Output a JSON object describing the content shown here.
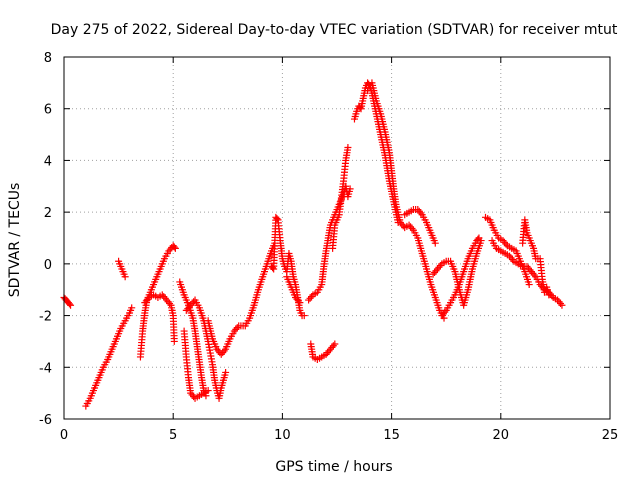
{
  "chart_data": {
    "type": "scatter",
    "title": "Day 275 of 2022, Sidereal Day-to-day VTEC variation (SDTVAR) for receiver mtut",
    "xlabel": "GPS time / hours",
    "ylabel": "SDTVAR / TECUs",
    "xlim": [
      0,
      25
    ],
    "ylim": [
      -6,
      8
    ],
    "xticks": [
      0,
      5,
      10,
      15,
      20,
      25
    ],
    "yticks": [
      -6,
      -4,
      -2,
      0,
      2,
      4,
      6,
      8
    ],
    "xtick_labels": [
      "0",
      "5",
      "10",
      "15",
      "20",
      "25"
    ],
    "ytick_labels": [
      "-6",
      "-4",
      "-2",
      "0",
      "2",
      "4",
      "6",
      "8"
    ],
    "grid": true,
    "marker": "plus",
    "color": "#ff0000",
    "series": [
      {
        "name": "s1",
        "points": [
          [
            0.0,
            -1.3
          ],
          [
            0.1,
            -1.4
          ],
          [
            0.2,
            -1.5
          ],
          [
            0.3,
            -1.6
          ]
        ]
      },
      {
        "name": "s2",
        "points": [
          [
            1.0,
            -5.5
          ],
          [
            1.2,
            -5.2
          ],
          [
            1.4,
            -4.8
          ],
          [
            1.6,
            -4.4
          ],
          [
            1.8,
            -4.0
          ],
          [
            2.0,
            -3.7
          ],
          [
            2.2,
            -3.3
          ],
          [
            2.4,
            -2.9
          ],
          [
            2.6,
            -2.5
          ],
          [
            2.8,
            -2.2
          ],
          [
            3.0,
            -1.9
          ],
          [
            3.1,
            -1.7
          ]
        ]
      },
      {
        "name": "s3",
        "points": [
          [
            2.5,
            0.1
          ],
          [
            2.6,
            -0.1
          ],
          [
            2.7,
            -0.3
          ],
          [
            2.8,
            -0.5
          ]
        ]
      },
      {
        "name": "s4",
        "points": [
          [
            3.5,
            -3.6
          ],
          [
            3.6,
            -2.6
          ],
          [
            3.7,
            -1.9
          ],
          [
            3.8,
            -1.4
          ],
          [
            4.0,
            -1.0
          ],
          [
            4.2,
            -0.6
          ],
          [
            4.4,
            -0.2
          ],
          [
            4.6,
            0.2
          ],
          [
            4.8,
            0.5
          ],
          [
            5.0,
            0.7
          ],
          [
            5.1,
            0.6
          ]
        ]
      },
      {
        "name": "s5",
        "points": [
          [
            3.7,
            -1.5
          ],
          [
            3.9,
            -1.3
          ],
          [
            4.1,
            -1.2
          ],
          [
            4.3,
            -1.3
          ],
          [
            4.5,
            -1.2
          ],
          [
            4.7,
            -1.4
          ],
          [
            4.9,
            -1.6
          ],
          [
            5.0,
            -2.0
          ],
          [
            5.05,
            -3.0
          ]
        ]
      },
      {
        "name": "s6",
        "points": [
          [
            5.3,
            -0.7
          ],
          [
            5.5,
            -1.2
          ],
          [
            5.7,
            -1.6
          ],
          [
            5.9,
            -2.1
          ],
          [
            6.0,
            -2.6
          ],
          [
            6.1,
            -3.2
          ],
          [
            6.2,
            -3.8
          ],
          [
            6.3,
            -4.4
          ],
          [
            6.4,
            -4.9
          ],
          [
            6.5,
            -5.1
          ]
        ]
      },
      {
        "name": "s7",
        "points": [
          [
            5.6,
            -1.8
          ],
          [
            5.8,
            -1.6
          ],
          [
            6.0,
            -1.4
          ],
          [
            6.2,
            -1.7
          ],
          [
            6.4,
            -2.2
          ],
          [
            6.6,
            -3.0
          ],
          [
            6.8,
            -3.9
          ],
          [
            6.9,
            -4.5
          ],
          [
            7.0,
            -4.9
          ],
          [
            7.1,
            -5.2
          ],
          [
            7.2,
            -4.8
          ],
          [
            7.4,
            -4.2
          ]
        ]
      },
      {
        "name": "s8",
        "points": [
          [
            5.5,
            -2.6
          ],
          [
            5.6,
            -3.6
          ],
          [
            5.7,
            -4.4
          ],
          [
            5.8,
            -5.0
          ],
          [
            6.0,
            -5.2
          ],
          [
            6.2,
            -5.1
          ],
          [
            6.4,
            -5.0
          ],
          [
            6.6,
            -4.9
          ]
        ]
      },
      {
        "name": "s9",
        "points": [
          [
            6.6,
            -2.2
          ],
          [
            6.8,
            -2.9
          ],
          [
            7.0,
            -3.3
          ],
          [
            7.2,
            -3.5
          ],
          [
            7.4,
            -3.3
          ],
          [
            7.6,
            -2.9
          ],
          [
            7.8,
            -2.6
          ],
          [
            8.0,
            -2.4
          ],
          [
            8.3,
            -2.4
          ],
          [
            8.5,
            -2.1
          ],
          [
            8.7,
            -1.6
          ],
          [
            8.9,
            -1.0
          ],
          [
            9.1,
            -0.5
          ],
          [
            9.3,
            0.0
          ],
          [
            9.5,
            0.5
          ],
          [
            9.6,
            0.7
          ]
        ]
      },
      {
        "name": "s10",
        "points": [
          [
            9.5,
            -0.1
          ],
          [
            9.6,
            -0.2
          ],
          [
            9.7,
            1.8
          ],
          [
            9.8,
            1.7
          ],
          [
            9.9,
            0.9
          ],
          [
            10.0,
            0.2
          ],
          [
            10.1,
            -0.1
          ],
          [
            10.2,
            -0.3
          ],
          [
            10.3,
            0.4
          ],
          [
            10.4,
            0.1
          ],
          [
            10.5,
            -0.5
          ],
          [
            10.6,
            -0.8
          ],
          [
            10.7,
            -1.3
          ],
          [
            10.8,
            -1.8
          ],
          [
            10.9,
            -2.0
          ],
          [
            11.0,
            -2.0
          ]
        ]
      },
      {
        "name": "s11",
        "points": [
          [
            10.2,
            -0.5
          ],
          [
            10.4,
            -0.9
          ],
          [
            10.6,
            -1.3
          ],
          [
            10.8,
            -1.5
          ]
        ]
      },
      {
        "name": "s12",
        "points": [
          [
            11.3,
            -3.1
          ],
          [
            11.4,
            -3.6
          ],
          [
            11.6,
            -3.7
          ],
          [
            11.8,
            -3.6
          ],
          [
            12.0,
            -3.5
          ],
          [
            12.2,
            -3.3
          ],
          [
            12.4,
            -3.1
          ]
        ]
      },
      {
        "name": "s13",
        "points": [
          [
            11.2,
            -1.4
          ],
          [
            11.4,
            -1.2
          ],
          [
            11.6,
            -1.1
          ],
          [
            11.8,
            -0.8
          ],
          [
            11.9,
            -0.1
          ],
          [
            12.0,
            0.5
          ],
          [
            12.1,
            1.0
          ],
          [
            12.2,
            1.5
          ],
          [
            12.4,
            1.9
          ],
          [
            12.6,
            2.3
          ],
          [
            12.8,
            2.7
          ],
          [
            12.9,
            3.0
          ],
          [
            13.0,
            2.6
          ],
          [
            13.1,
            2.9
          ]
        ]
      },
      {
        "name": "s14",
        "points": [
          [
            12.3,
            0.6
          ],
          [
            12.4,
            1.5
          ],
          [
            12.6,
            1.9
          ],
          [
            12.8,
            3.2
          ],
          [
            12.9,
            4.0
          ],
          [
            13.0,
            4.5
          ]
        ]
      },
      {
        "name": "s15",
        "points": [
          [
            13.3,
            5.6
          ],
          [
            13.4,
            5.9
          ],
          [
            13.5,
            6.1
          ],
          [
            13.6,
            6.0
          ],
          [
            13.7,
            6.4
          ],
          [
            13.8,
            6.8
          ],
          [
            13.9,
            7.0
          ],
          [
            14.0,
            6.9
          ],
          [
            14.1,
            6.6
          ],
          [
            14.2,
            6.2
          ],
          [
            14.3,
            5.8
          ],
          [
            14.4,
            5.4
          ],
          [
            14.5,
            5.0
          ],
          [
            14.6,
            4.6
          ],
          [
            14.7,
            4.2
          ],
          [
            14.8,
            3.7
          ],
          [
            14.9,
            3.2
          ],
          [
            15.0,
            2.8
          ],
          [
            15.1,
            2.4
          ],
          [
            15.2,
            2.0
          ],
          [
            15.3,
            1.6
          ]
        ]
      },
      {
        "name": "s16",
        "points": [
          [
            13.9,
            6.7
          ],
          [
            14.1,
            7.0
          ],
          [
            14.3,
            6.3
          ],
          [
            14.5,
            5.8
          ],
          [
            14.7,
            5.1
          ],
          [
            14.9,
            4.3
          ],
          [
            15.0,
            3.6
          ],
          [
            15.1,
            2.9
          ],
          [
            15.2,
            2.3
          ],
          [
            15.4,
            1.6
          ],
          [
            15.6,
            1.4
          ],
          [
            15.8,
            1.5
          ],
          [
            16.0,
            1.3
          ],
          [
            16.2,
            1.0
          ],
          [
            16.4,
            0.4
          ],
          [
            16.6,
            -0.2
          ],
          [
            16.8,
            -0.8
          ],
          [
            17.0,
            -1.3
          ],
          [
            17.2,
            -1.8
          ],
          [
            17.4,
            -2.1
          ]
        ]
      },
      {
        "name": "s17",
        "points": [
          [
            15.6,
            1.9
          ],
          [
            15.8,
            2.0
          ],
          [
            16.0,
            2.1
          ],
          [
            16.2,
            2.1
          ],
          [
            16.4,
            1.9
          ],
          [
            16.6,
            1.6
          ],
          [
            16.8,
            1.2
          ],
          [
            17.0,
            0.8
          ]
        ]
      },
      {
        "name": "s18",
        "points": [
          [
            16.9,
            -0.4
          ],
          [
            17.1,
            -0.2
          ],
          [
            17.3,
            0.0
          ],
          [
            17.5,
            0.1
          ],
          [
            17.7,
            0.1
          ],
          [
            17.9,
            -0.3
          ],
          [
            18.1,
            -1.0
          ],
          [
            18.3,
            -1.6
          ],
          [
            18.5,
            -1.0
          ],
          [
            18.7,
            -0.2
          ],
          [
            18.9,
            0.4
          ],
          [
            19.1,
            0.9
          ]
        ]
      },
      {
        "name": "s19",
        "points": [
          [
            17.3,
            -2.0
          ],
          [
            17.5,
            -1.8
          ],
          [
            17.7,
            -1.5
          ],
          [
            17.9,
            -1.2
          ],
          [
            18.1,
            -0.8
          ],
          [
            18.3,
            -0.3
          ],
          [
            18.5,
            0.2
          ],
          [
            18.7,
            0.6
          ],
          [
            18.9,
            0.9
          ],
          [
            19.0,
            1.0
          ]
        ]
      },
      {
        "name": "s20",
        "points": [
          [
            19.3,
            1.8
          ],
          [
            19.5,
            1.7
          ],
          [
            19.7,
            1.3
          ],
          [
            19.9,
            1.0
          ],
          [
            20.1,
            0.9
          ],
          [
            20.3,
            0.7
          ],
          [
            20.5,
            0.6
          ],
          [
            20.7,
            0.5
          ],
          [
            20.9,
            0.1
          ],
          [
            21.1,
            -0.3
          ],
          [
            21.3,
            -0.8
          ]
        ]
      },
      {
        "name": "s21",
        "points": [
          [
            19.6,
            0.9
          ],
          [
            19.8,
            0.6
          ],
          [
            20.0,
            0.5
          ],
          [
            20.2,
            0.4
          ],
          [
            20.4,
            0.3
          ],
          [
            20.6,
            0.1
          ],
          [
            20.8,
            0.0
          ],
          [
            21.0,
            -0.1
          ],
          [
            21.2,
            -0.1
          ],
          [
            21.4,
            -0.3
          ],
          [
            21.6,
            -0.5
          ],
          [
            21.8,
            -0.8
          ],
          [
            22.0,
            -1.0
          ],
          [
            22.2,
            -1.1
          ],
          [
            22.4,
            -1.3
          ],
          [
            22.6,
            -1.4
          ],
          [
            22.8,
            -1.6
          ]
        ]
      },
      {
        "name": "s22",
        "points": [
          [
            21.0,
            0.8
          ],
          [
            21.1,
            1.7
          ],
          [
            21.2,
            1.2
          ],
          [
            21.3,
            1.0
          ],
          [
            21.5,
            0.6
          ],
          [
            21.6,
            0.2
          ],
          [
            21.8,
            0.2
          ],
          [
            21.9,
            -0.6
          ],
          [
            22.0,
            -1.1
          ],
          [
            22.1,
            -0.9
          ],
          [
            22.2,
            -1.2
          ]
        ]
      }
    ]
  }
}
